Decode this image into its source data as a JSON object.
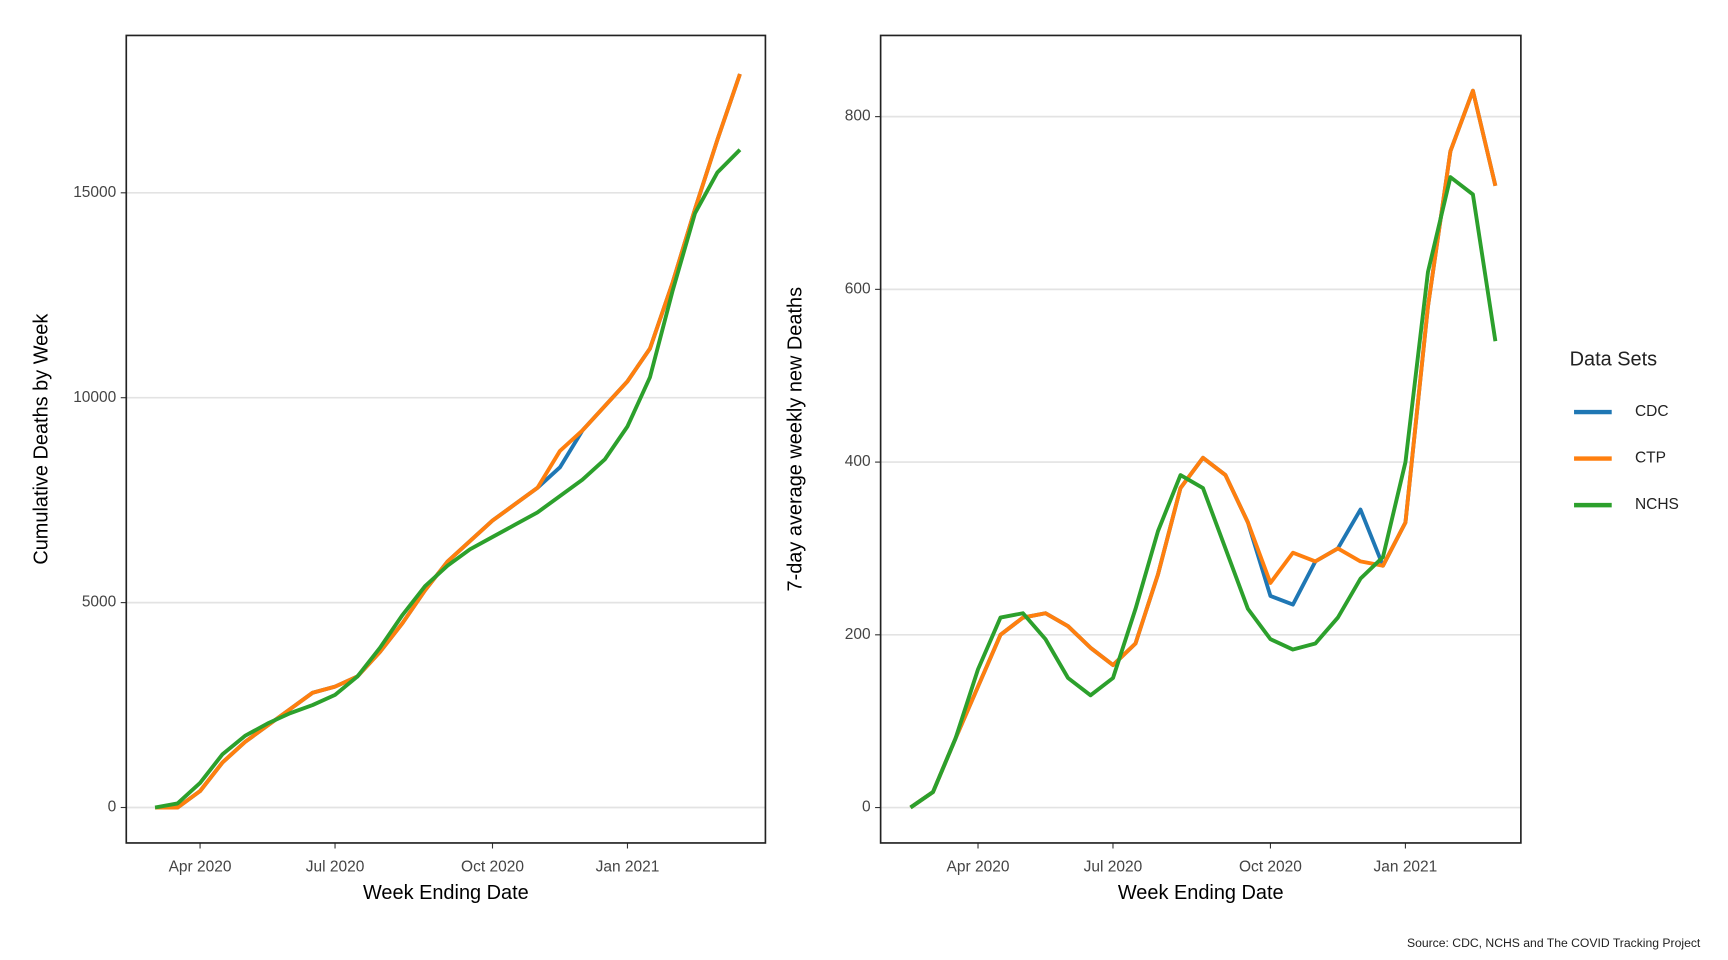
{
  "chart_data": [
    {
      "type": "line",
      "y_label": "Cumulative Deaths by Week",
      "x_label": "Week Ending Date",
      "categories": [
        null,
        null,
        "Apr 2020",
        null,
        null,
        null,
        null,
        null,
        "Jul 2020",
        null,
        null,
        null,
        null,
        null,
        null,
        "Oct 2020",
        null,
        null,
        null,
        null,
        null,
        "Jan 2021",
        null,
        null,
        null,
        null,
        null
      ],
      "ylim": [
        -865,
        18840
      ],
      "yticks": [
        0,
        5000,
        10000,
        15000
      ],
      "grid": true,
      "series": [
        {
          "name": "CDC",
          "color": "#1f77b4",
          "values": [
            0,
            0,
            400,
            1100,
            1600,
            2000,
            2400,
            2800,
            2950,
            3200,
            3800,
            4500,
            5300,
            6000,
            6500,
            7000,
            7400,
            7800,
            8300,
            9200,
            9800,
            10400,
            11200,
            12800,
            14600,
            16300,
            17900
          ]
        },
        {
          "name": "CTP",
          "color": "#ff7f0e",
          "values": [
            0,
            0,
            400,
            1100,
            1600,
            2000,
            2400,
            2800,
            2950,
            3200,
            3800,
            4500,
            5300,
            6000,
            6500,
            7000,
            7400,
            7800,
            8700,
            9200,
            9800,
            10400,
            11200,
            12800,
            14600,
            16300,
            17900
          ]
        },
        {
          "name": "NCHS",
          "color": "#2ca02c",
          "values": [
            0,
            100,
            600,
            1300,
            1750,
            2050,
            2300,
            2500,
            2750,
            3200,
            3900,
            4700,
            5400,
            5900,
            6300,
            6600,
            6900,
            7200,
            7600,
            8000,
            8500,
            9300,
            10500,
            12600,
            14500,
            15500,
            16050
          ]
        }
      ]
    },
    {
      "type": "line",
      "y_label": "7-day average weekly new Deaths",
      "x_label": "Week Ending Date",
      "categories": [
        null,
        null,
        null,
        "Apr 2020",
        null,
        null,
        null,
        null,
        null,
        "Jul 2020",
        null,
        null,
        null,
        null,
        null,
        null,
        "Oct 2020",
        null,
        null,
        null,
        null,
        null,
        "Jan 2021",
        null,
        null,
        null,
        null
      ],
      "ylim": [
        -41,
        894
      ],
      "yticks": [
        0,
        200,
        400,
        600,
        800
      ],
      "grid": true,
      "series": [
        {
          "name": "CDC",
          "color": "#1f77b4",
          "values": [
            0,
            18,
            80,
            140,
            200,
            220,
            225,
            210,
            185,
            165,
            190,
            270,
            370,
            405,
            385,
            330,
            245,
            235,
            285,
            300,
            345,
            280,
            330,
            580,
            760,
            830,
            720
          ]
        },
        {
          "name": "CTP",
          "color": "#ff7f0e",
          "values": [
            0,
            18,
            80,
            140,
            200,
            220,
            225,
            210,
            185,
            165,
            190,
            270,
            370,
            405,
            385,
            330,
            260,
            295,
            285,
            300,
            285,
            280,
            330,
            580,
            760,
            830,
            720
          ]
        },
        {
          "name": "NCHS",
          "color": "#2ca02c",
          "values": [
            0,
            18,
            80,
            160,
            220,
            225,
            195,
            150,
            130,
            150,
            230,
            320,
            385,
            370,
            300,
            230,
            195,
            183,
            190,
            220,
            265,
            290,
            400,
            620,
            730,
            710,
            540
          ]
        }
      ]
    }
  ],
  "legend_title": "Data Sets",
  "source": "Source: CDC, NCHS and The COVID Tracking Project"
}
